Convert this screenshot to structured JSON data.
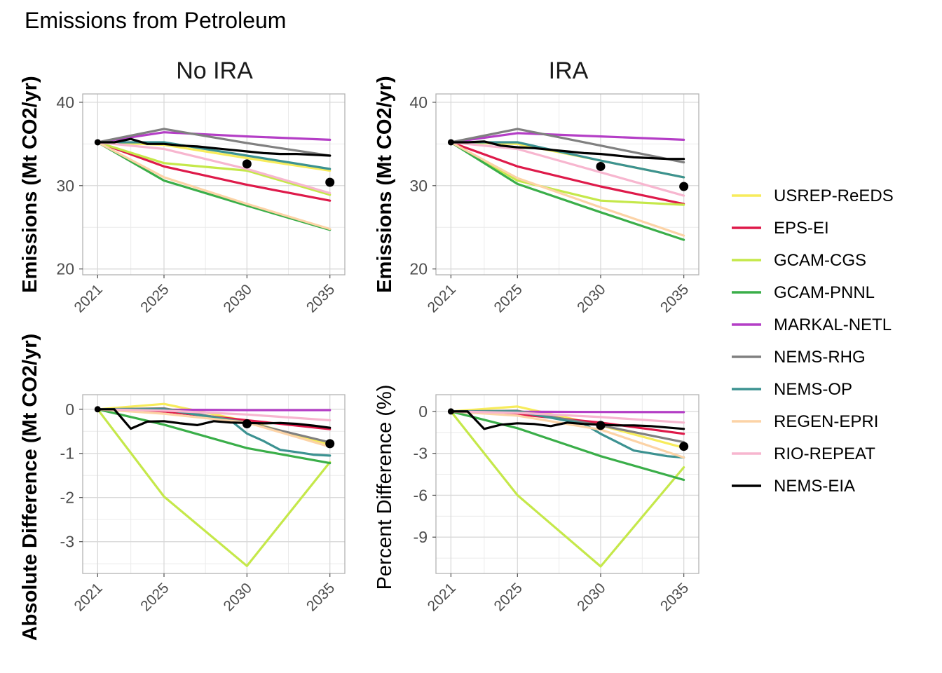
{
  "title": "Emissions from Petroleum",
  "colors": {
    "USREP-ReEDS": "#f7ec5b",
    "EPS-EI": "#de1a4a",
    "GCAM-CGS": "#c5e84a",
    "GCAM-PNNL": "#3aae49",
    "MARKAL-NETL": "#b43ec6",
    "NEMS-RHG": "#808080",
    "NEMS-OP": "#3c9291",
    "REGEN-EPRI": "#fcd3a6",
    "RIO-REPEAT": "#f7b6cf",
    "NEMS-EIA": "#000000",
    "historic": "#000000"
  },
  "legend": {
    "position": "right",
    "entries": [
      "USREP-ReEDS",
      "EPS-EI",
      "GCAM-CGS",
      "GCAM-PNNL",
      "MARKAL-NETL",
      "NEMS-RHG",
      "NEMS-OP",
      "REGEN-EPRI",
      "RIO-REPEAT",
      "NEMS-EIA"
    ]
  },
  "chart_data": [
    {
      "type": "line",
      "facet": "No IRA",
      "ylabel": "Emissions (Mt CO2/yr)",
      "ylabel_bold": true,
      "xticks": [
        2021,
        2025,
        2030,
        2035
      ],
      "ylim": [
        19.3,
        41
      ],
      "yticks": [
        20,
        30,
        40
      ],
      "grid": true,
      "series": [
        {
          "name": "USREP-ReEDS",
          "x": [
            2021,
            2025,
            2030,
            2035
          ],
          "y": [
            35.2,
            34.9,
            33.3,
            31.8
          ]
        },
        {
          "name": "EPS-EI",
          "x": [
            2021,
            2025,
            2030,
            2035
          ],
          "y": [
            35.2,
            32.3,
            30.1,
            28.2
          ]
        },
        {
          "name": "GCAM-CGS",
          "x": [
            2021,
            2025,
            2030,
            2035
          ],
          "y": [
            35.2,
            32.7,
            31.8,
            28.9
          ]
        },
        {
          "name": "GCAM-PNNL",
          "x": [
            2021,
            2025,
            2030,
            2035
          ],
          "y": [
            35.2,
            30.6,
            27.6,
            24.7
          ]
        },
        {
          "name": "MARKAL-NETL",
          "x": [
            2021,
            2025,
            2030,
            2035
          ],
          "y": [
            35.2,
            36.4,
            35.9,
            35.5
          ]
        },
        {
          "name": "NEMS-RHG",
          "x": [
            2021,
            2025,
            2030,
            2035
          ],
          "y": [
            35.2,
            36.8,
            35.1,
            33.6
          ]
        },
        {
          "name": "NEMS-OP",
          "x": [
            2021,
            2025,
            2030,
            2035
          ],
          "y": [
            35.2,
            35.2,
            33.6,
            32.0
          ]
        },
        {
          "name": "REGEN-EPRI",
          "x": [
            2021,
            2025,
            2030,
            2035
          ],
          "y": [
            35.2,
            31.0,
            27.8,
            24.8
          ]
        },
        {
          "name": "RIO-REPEAT",
          "x": [
            2021,
            2025,
            2030,
            2035
          ],
          "y": [
            35.2,
            34.4,
            32.0,
            29.1
          ]
        },
        {
          "name": "NEMS-EIA",
          "x": [
            2021,
            2022,
            2023,
            2024,
            2025,
            2026,
            2027,
            2028,
            2029,
            2030,
            2031,
            2032,
            2033,
            2034,
            2035
          ],
          "y": [
            35.2,
            35.2,
            35.6,
            35.0,
            35.0,
            34.8,
            34.7,
            34.5,
            34.3,
            34.1,
            33.9,
            33.8,
            33.8,
            33.7,
            33.6
          ]
        }
      ],
      "points": [
        {
          "x": 2030,
          "y": 32.6
        },
        {
          "x": 2035,
          "y": 30.4
        },
        {
          "x": 2021,
          "y": 35.2
        }
      ]
    },
    {
      "type": "line",
      "facet": "IRA",
      "ylabel": "Emissions (Mt CO2/yr)",
      "ylabel_bold": true,
      "xticks": [
        2021,
        2025,
        2030,
        2035
      ],
      "ylim": [
        19.3,
        41
      ],
      "yticks": [
        20,
        30,
        40
      ],
      "grid": true,
      "series": [
        {
          "name": "USREP-ReEDS",
          "x": [
            2021,
            2025,
            2030,
            2035
          ],
          "y": [
            35.2,
            35.0,
            33.0,
            31.0
          ]
        },
        {
          "name": "EPS-EI",
          "x": [
            2021,
            2025,
            2030,
            2035
          ],
          "y": [
            35.2,
            32.3,
            29.9,
            27.8
          ]
        },
        {
          "name": "GCAM-CGS",
          "x": [
            2021,
            2025,
            2030,
            2035
          ],
          "y": [
            35.2,
            30.6,
            28.2,
            27.7
          ]
        },
        {
          "name": "GCAM-PNNL",
          "x": [
            2021,
            2025,
            2030,
            2035
          ],
          "y": [
            35.2,
            30.2,
            26.8,
            23.5
          ]
        },
        {
          "name": "MARKAL-NETL",
          "x": [
            2021,
            2025,
            2030,
            2035
          ],
          "y": [
            35.2,
            36.3,
            35.9,
            35.5
          ]
        },
        {
          "name": "NEMS-RHG",
          "x": [
            2021,
            2025,
            2030,
            2035
          ],
          "y": [
            35.2,
            36.8,
            34.8,
            32.8
          ]
        },
        {
          "name": "NEMS-OP",
          "x": [
            2021,
            2025,
            2030,
            2035
          ],
          "y": [
            35.2,
            35.2,
            33.0,
            31.0
          ]
        },
        {
          "name": "REGEN-EPRI",
          "x": [
            2021,
            2025,
            2030,
            2035
          ],
          "y": [
            35.2,
            30.9,
            27.4,
            24.0
          ]
        },
        {
          "name": "RIO-REPEAT",
          "x": [
            2021,
            2025,
            2030,
            2035
          ],
          "y": [
            35.2,
            34.4,
            31.6,
            28.8
          ]
        },
        {
          "name": "NEMS-EIA",
          "x": [
            2021,
            2022,
            2023,
            2024,
            2025,
            2026,
            2027,
            2028,
            2029,
            2030,
            2031,
            2032,
            2033,
            2034,
            2035
          ],
          "y": [
            35.2,
            35.2,
            35.3,
            34.8,
            34.6,
            34.5,
            34.3,
            34.1,
            33.9,
            33.8,
            33.6,
            33.4,
            33.3,
            33.2,
            33.2
          ]
        }
      ],
      "points": [
        {
          "x": 2030,
          "y": 32.3
        },
        {
          "x": 2035,
          "y": 29.9
        },
        {
          "x": 2021,
          "y": 35.2
        }
      ]
    },
    {
      "type": "line",
      "facet": "No IRA",
      "ylabel": "Absolute Difference (Mt CO2/yr)",
      "ylabel_bold": true,
      "xticks": [
        2021,
        2025,
        2030,
        2035
      ],
      "ylim": [
        -3.72,
        0.33
      ],
      "yticks": [
        0,
        -1,
        -2,
        -3
      ],
      "grid": true,
      "series": [
        {
          "name": "USREP-ReEDS",
          "x": [
            2021,
            2025,
            2030,
            2035
          ],
          "y": [
            0,
            0.12,
            -0.27,
            -0.8
          ]
        },
        {
          "name": "EPS-EI",
          "x": [
            2021,
            2025,
            2030,
            2035
          ],
          "y": [
            0,
            -0.05,
            -0.25,
            -0.45
          ]
        },
        {
          "name": "GCAM-CGS",
          "x": [
            2021,
            2025,
            2030,
            2035
          ],
          "y": [
            0,
            -1.98,
            -3.55,
            -1.2
          ]
        },
        {
          "name": "GCAM-PNNL",
          "x": [
            2021,
            2025,
            2030,
            2035
          ],
          "y": [
            0,
            -0.35,
            -0.88,
            -1.22
          ]
        },
        {
          "name": "MARKAL-NETL",
          "x": [
            2021,
            2025,
            2030,
            2035
          ],
          "y": [
            0,
            -0.01,
            -0.02,
            -0.02
          ]
        },
        {
          "name": "NEMS-RHG",
          "x": [
            2021,
            2025,
            2030,
            2035
          ],
          "y": [
            0,
            0.02,
            -0.3,
            -0.75
          ]
        },
        {
          "name": "NEMS-OP",
          "x": [
            2021,
            2025,
            2029,
            2030,
            2031,
            2032,
            2033,
            2034,
            2035
          ],
          "y": [
            0,
            0.0,
            -0.25,
            -0.55,
            -0.72,
            -0.92,
            -0.97,
            -1.03,
            -1.05
          ]
        },
        {
          "name": "REGEN-EPRI",
          "x": [
            2021,
            2025,
            2030,
            2035
          ],
          "y": [
            0,
            -0.1,
            -0.3,
            -0.85
          ]
        },
        {
          "name": "RIO-REPEAT",
          "x": [
            2021,
            2025,
            2030,
            2035
          ],
          "y": [
            0,
            -0.03,
            -0.12,
            -0.25
          ]
        },
        {
          "name": "NEMS-EIA",
          "x": [
            2021,
            2022,
            2023,
            2024,
            2025,
            2026,
            2027,
            2028,
            2029,
            2030,
            2031,
            2032,
            2033,
            2034,
            2035
          ],
          "y": [
            0,
            0,
            -0.44,
            -0.28,
            -0.27,
            -0.32,
            -0.36,
            -0.27,
            -0.3,
            -0.31,
            -0.32,
            -0.31,
            -0.33,
            -0.37,
            -0.42
          ]
        }
      ],
      "points": [
        {
          "x": 2030,
          "y": -0.33
        },
        {
          "x": 2035,
          "y": -0.78
        },
        {
          "x": 2021,
          "y": 0
        }
      ]
    },
    {
      "type": "line",
      "facet": "IRA",
      "ylabel": "Percent Difference (%)",
      "ylabel_bold": false,
      "xticks": [
        2021,
        2025,
        2030,
        2035
      ],
      "ylim": [
        -11.6,
        1.2
      ],
      "yticks": [
        0,
        -3,
        -6,
        -9
      ],
      "grid": true,
      "series": [
        {
          "name": "USREP-ReEDS",
          "x": [
            2021,
            2025,
            2030,
            2035
          ],
          "y": [
            0,
            0.35,
            -1.0,
            -2.6
          ]
        },
        {
          "name": "EPS-EI",
          "x": [
            2021,
            2025,
            2030,
            2035
          ],
          "y": [
            0,
            -0.2,
            -0.8,
            -1.6
          ]
        },
        {
          "name": "GCAM-CGS",
          "x": [
            2021,
            2025,
            2030,
            2035
          ],
          "y": [
            0,
            -6.0,
            -11.1,
            -4.0
          ]
        },
        {
          "name": "GCAM-PNNL",
          "x": [
            2021,
            2025,
            2030,
            2035
          ],
          "y": [
            0,
            -1.2,
            -3.2,
            -4.9
          ]
        },
        {
          "name": "MARKAL-NETL",
          "x": [
            2021,
            2025,
            2030,
            2035
          ],
          "y": [
            0,
            -0.02,
            -0.04,
            -0.05
          ]
        },
        {
          "name": "NEMS-RHG",
          "x": [
            2021,
            2025,
            2030,
            2035
          ],
          "y": [
            0,
            0.05,
            -1.0,
            -2.2
          ]
        },
        {
          "name": "NEMS-OP",
          "x": [
            2021,
            2025,
            2029,
            2030,
            2031,
            2032,
            2033,
            2034,
            2035
          ],
          "y": [
            0,
            0.0,
            -0.9,
            -1.6,
            -2.2,
            -2.8,
            -3.0,
            -3.2,
            -3.3
          ]
        },
        {
          "name": "REGEN-EPRI",
          "x": [
            2021,
            2025,
            2030,
            2035
          ],
          "y": [
            0,
            -0.3,
            -1.3,
            -3.3
          ]
        },
        {
          "name": "RIO-REPEAT",
          "x": [
            2021,
            2025,
            2030,
            2035
          ],
          "y": [
            0,
            -0.1,
            -0.4,
            -0.8
          ]
        },
        {
          "name": "NEMS-EIA",
          "x": [
            2021,
            2022,
            2023,
            2024,
            2025,
            2026,
            2027,
            2028,
            2029,
            2030,
            2031,
            2032,
            2033,
            2034,
            2035
          ],
          "y": [
            0,
            0,
            -1.25,
            -0.95,
            -0.85,
            -0.9,
            -1.05,
            -0.8,
            -0.9,
            -0.95,
            -1.0,
            -1.0,
            -1.05,
            -1.15,
            -1.25
          ]
        }
      ],
      "points": [
        {
          "x": 2030,
          "y": -1.0
        },
        {
          "x": 2035,
          "y": -2.5
        },
        {
          "x": 2021,
          "y": 0
        }
      ]
    }
  ]
}
